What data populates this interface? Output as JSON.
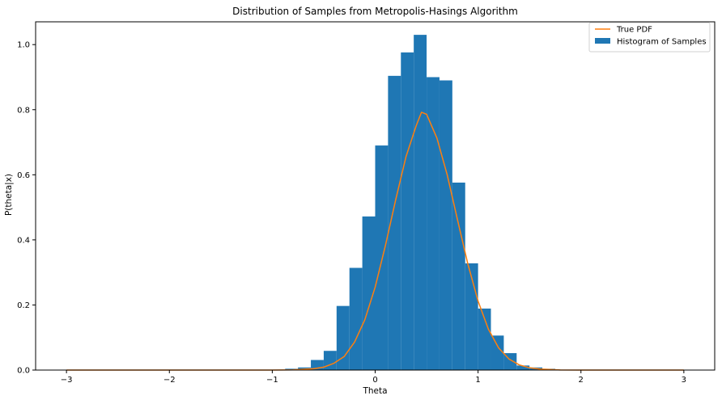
{
  "chart_data": {
    "type": "bar",
    "title": "Distribution of Samples from Metropolis-Hasings Algorithm",
    "xlabel": "Theta",
    "ylabel": "P(theta|x)",
    "xlim": [
      -3.3,
      3.3
    ],
    "ylim": [
      0,
      1.07
    ],
    "xticks": [
      -3,
      -2,
      -1,
      0,
      1,
      2,
      3
    ],
    "yticks": [
      0.0,
      0.2,
      0.4,
      0.6,
      0.8,
      1.0
    ],
    "grid": false,
    "legend_position": "top-right",
    "colors": {
      "histogram": "#1f77b4",
      "pdf": "#ff7f0e"
    },
    "series": [
      {
        "name": "Histogram of Samples",
        "type": "histogram",
        "bin_width": 0.125,
        "bins": [
          {
            "left": -1.0,
            "value": 0.0
          },
          {
            "left": -0.875,
            "value": 0.004
          },
          {
            "left": -0.75,
            "value": 0.008
          },
          {
            "left": -0.625,
            "value": 0.031
          },
          {
            "left": -0.5,
            "value": 0.059
          },
          {
            "left": -0.375,
            "value": 0.197
          },
          {
            "left": -0.25,
            "value": 0.314
          },
          {
            "left": -0.125,
            "value": 0.472
          },
          {
            "left": 0.0,
            "value": 0.69
          },
          {
            "left": 0.125,
            "value": 0.904
          },
          {
            "left": 0.25,
            "value": 0.976
          },
          {
            "left": 0.375,
            "value": 1.03
          },
          {
            "left": 0.5,
            "value": 0.9
          },
          {
            "left": 0.625,
            "value": 0.89
          },
          {
            "left": 0.75,
            "value": 0.576
          },
          {
            "left": 0.875,
            "value": 0.328
          },
          {
            "left": 1.0,
            "value": 0.189
          },
          {
            "left": 1.125,
            "value": 0.106
          },
          {
            "left": 1.25,
            "value": 0.052
          },
          {
            "left": 1.375,
            "value": 0.014
          },
          {
            "left": 1.5,
            "value": 0.008
          },
          {
            "left": 1.625,
            "value": 0.004
          }
        ]
      },
      {
        "name": "True PDF",
        "type": "line",
        "points": [
          [
            -3.0,
            0.0
          ],
          [
            -2.0,
            0.0
          ],
          [
            -1.0,
            0.0
          ],
          [
            -0.8,
            0.0007
          ],
          [
            -0.6,
            0.004
          ],
          [
            -0.5,
            0.009
          ],
          [
            -0.4,
            0.021
          ],
          [
            -0.3,
            0.042
          ],
          [
            -0.2,
            0.086
          ],
          [
            -0.1,
            0.155
          ],
          [
            0.0,
            0.255
          ],
          [
            0.1,
            0.383
          ],
          [
            0.2,
            0.524
          ],
          [
            0.3,
            0.656
          ],
          [
            0.4,
            0.752
          ],
          [
            0.45,
            0.792
          ],
          [
            0.5,
            0.786
          ],
          [
            0.6,
            0.713
          ],
          [
            0.7,
            0.6
          ],
          [
            0.8,
            0.462
          ],
          [
            0.9,
            0.327
          ],
          [
            1.0,
            0.212
          ],
          [
            1.1,
            0.126
          ],
          [
            1.2,
            0.068
          ],
          [
            1.3,
            0.034
          ],
          [
            1.4,
            0.016
          ],
          [
            1.5,
            0.007
          ],
          [
            1.6,
            0.003
          ],
          [
            1.8,
            0.0004
          ],
          [
            2.0,
            0.0
          ],
          [
            3.0,
            0.0
          ]
        ]
      }
    ]
  }
}
